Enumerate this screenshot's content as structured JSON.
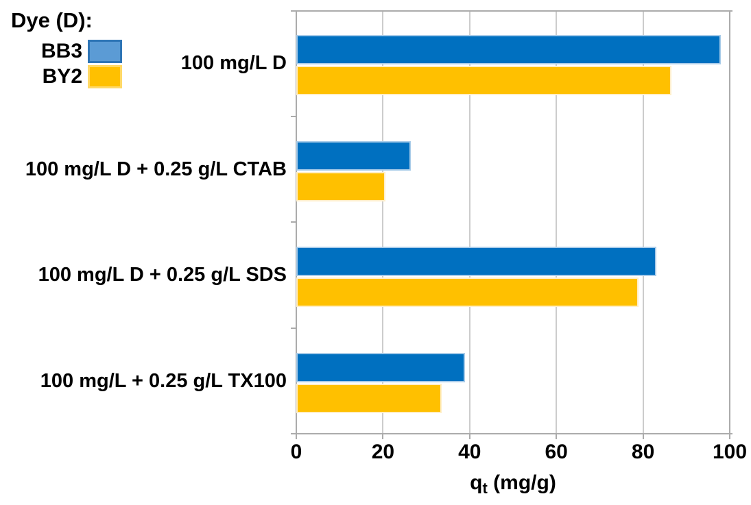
{
  "chart_data": {
    "type": "bar",
    "orientation": "horizontal",
    "title": "",
    "xlabel": {
      "base": "q",
      "sub": "t",
      "rest": " (mg/g)"
    },
    "ylabel": "",
    "xlim": [
      0,
      100
    ],
    "xticks": [
      0,
      20,
      40,
      60,
      80,
      100
    ],
    "grid": "vertical-major",
    "legend_position": "top-left",
    "legend_title": "Dye (D):",
    "categories": [
      "100 mg/L D",
      "100 mg/L D + 0.25 g/L CTAB",
      "100 mg/L D + 0.25 g/L SDS",
      "100 mg/L + 0.25 g/L TX100"
    ],
    "series": [
      {
        "name": "BB3",
        "values": [
          98,
          26.5,
          83,
          39
        ],
        "bar_fill": "#0070C0",
        "bar_border": "#A9CCE9",
        "legend_fill": "#5B9BD5",
        "legend_border": "#2E75B6"
      },
      {
        "name": "BY2",
        "values": [
          86.5,
          20.5,
          79,
          33.5
        ],
        "bar_fill": "#FFC000",
        "bar_border": "#FFEFC9",
        "legend_fill": "#FFC000",
        "legend_border": "#FFD966"
      }
    ],
    "colors": {
      "gridline": "#CCCCCC",
      "axis": "#ABABAB",
      "text": "#000000",
      "background": "#FFFFFF"
    }
  }
}
